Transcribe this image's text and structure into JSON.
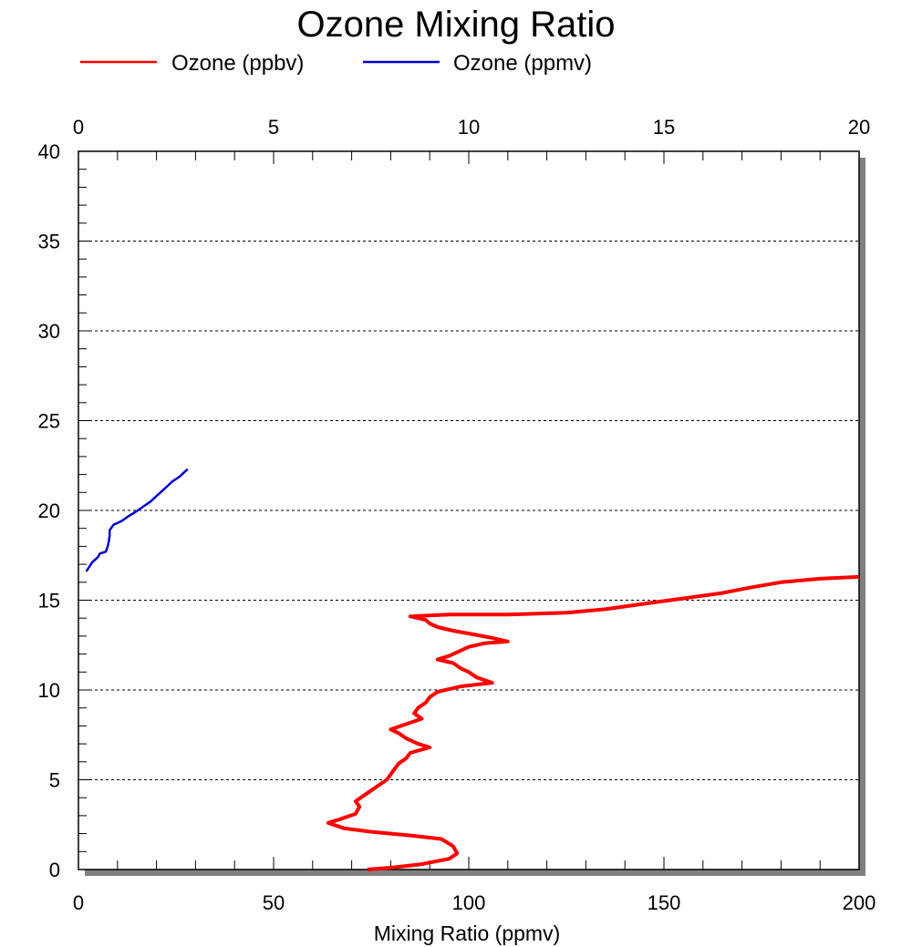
{
  "chart_data": {
    "type": "line",
    "title": "Ozone Mixing Ratio",
    "xlabel": "Mixing Ratio (ppmv)",
    "ylabel": "",
    "x_bottom": {
      "range": [
        0,
        200
      ],
      "ticks": [
        0,
        50,
        100,
        150,
        200
      ]
    },
    "x_top": {
      "range": [
        0,
        20
      ],
      "ticks": [
        0,
        5,
        10,
        15,
        20
      ]
    },
    "y": {
      "range": [
        0,
        40
      ],
      "ticks": [
        0,
        5,
        10,
        15,
        20,
        25,
        30,
        35,
        40
      ]
    },
    "grid": "horizontal dotted",
    "legend": "top",
    "series": [
      {
        "name": "Ozone (ppbv)",
        "color": "#ff0000",
        "axis": "bottom",
        "points": [
          [
            74,
            0.0
          ],
          [
            80,
            0.1
          ],
          [
            88,
            0.3
          ],
          [
            95,
            0.6
          ],
          [
            97,
            0.9
          ],
          [
            96,
            1.3
          ],
          [
            93,
            1.7
          ],
          [
            85,
            1.9
          ],
          [
            75,
            2.1
          ],
          [
            68,
            2.3
          ],
          [
            64,
            2.6
          ],
          [
            67,
            2.8
          ],
          [
            71,
            3.1
          ],
          [
            72,
            3.5
          ],
          [
            71,
            3.8
          ],
          [
            73,
            4.1
          ],
          [
            75,
            4.4
          ],
          [
            77,
            4.7
          ],
          [
            79,
            5.0
          ],
          [
            80,
            5.3
          ],
          [
            81,
            5.6
          ],
          [
            82,
            5.9
          ],
          [
            84,
            6.2
          ],
          [
            85,
            6.5
          ],
          [
            90,
            6.8
          ],
          [
            87,
            7.0
          ],
          [
            84,
            7.3
          ],
          [
            82,
            7.6
          ],
          [
            80,
            7.8
          ],
          [
            84,
            8.1
          ],
          [
            88,
            8.4
          ],
          [
            86,
            8.7
          ],
          [
            87,
            9.0
          ],
          [
            89,
            9.3
          ],
          [
            90,
            9.6
          ],
          [
            92,
            9.9
          ],
          [
            98,
            10.2
          ],
          [
            106,
            10.4
          ],
          [
            102,
            10.7
          ],
          [
            100,
            11.0
          ],
          [
            98,
            11.2
          ],
          [
            96,
            11.5
          ],
          [
            92,
            11.7
          ],
          [
            95,
            11.9
          ],
          [
            98,
            12.2
          ],
          [
            100,
            12.4
          ],
          [
            104,
            12.6
          ],
          [
            110,
            12.7
          ],
          [
            106,
            12.9
          ],
          [
            101,
            13.1
          ],
          [
            96,
            13.3
          ],
          [
            92,
            13.5
          ],
          [
            90,
            13.7
          ],
          [
            89,
            13.9
          ],
          [
            85,
            14.1
          ],
          [
            95,
            14.2
          ],
          [
            110,
            14.2
          ],
          [
            125,
            14.3
          ],
          [
            135,
            14.5
          ],
          [
            145,
            14.8
          ],
          [
            155,
            15.1
          ],
          [
            165,
            15.4
          ],
          [
            172,
            15.7
          ],
          [
            180,
            16.0
          ],
          [
            190,
            16.2
          ],
          [
            200,
            16.3
          ]
        ]
      },
      {
        "name": "Ozone (ppmv)",
        "color": "#0000cc",
        "axis": "top",
        "points": [
          [
            0.2,
            16.6
          ],
          [
            0.35,
            17.1
          ],
          [
            0.5,
            17.4
          ],
          [
            0.55,
            17.6
          ],
          [
            0.7,
            17.7
          ],
          [
            0.75,
            18.0
          ],
          [
            0.78,
            18.3
          ],
          [
            0.8,
            18.6
          ],
          [
            0.8,
            18.9
          ],
          [
            0.9,
            19.2
          ],
          [
            1.1,
            19.4
          ],
          [
            1.3,
            19.7
          ],
          [
            1.45,
            19.9
          ],
          [
            1.65,
            20.2
          ],
          [
            1.85,
            20.5
          ],
          [
            2.05,
            20.9
          ],
          [
            2.2,
            21.2
          ],
          [
            2.4,
            21.6
          ],
          [
            2.6,
            21.9
          ],
          [
            2.8,
            22.3
          ]
        ]
      }
    ]
  }
}
